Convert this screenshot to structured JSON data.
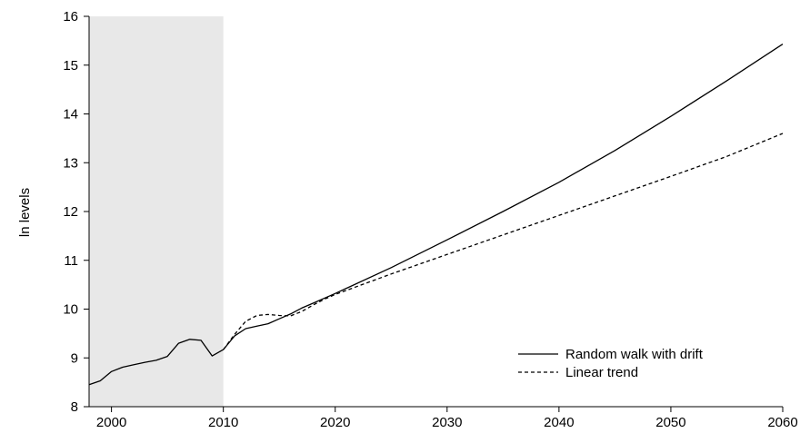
{
  "chart_data": {
    "type": "line",
    "title": "",
    "xlabel": "",
    "ylabel": "ln levels",
    "xlim": [
      1998,
      2060
    ],
    "ylim": [
      8,
      16
    ],
    "x_ticks": [
      2000,
      2010,
      2020,
      2030,
      2040,
      2050,
      2060
    ],
    "y_ticks": [
      8,
      9,
      10,
      11,
      12,
      13,
      14,
      15,
      16
    ],
    "x_tick_labels": [
      "2000",
      "2010",
      "2020",
      "2030",
      "2040",
      "2050",
      "2060"
    ],
    "y_tick_labels": [
      "8",
      "9",
      "10",
      "11",
      "12",
      "13",
      "14",
      "15",
      "16"
    ],
    "shaded_region": {
      "x": [
        1998,
        2010
      ],
      "color": "#e8e8e8"
    },
    "grid": false,
    "legend_position": "bottom-right",
    "series": [
      {
        "name": "Random walk with drift",
        "style": "solid",
        "color": "#000000",
        "x": [
          1998,
          1999,
          2000,
          2001,
          2002,
          2003,
          2004,
          2005,
          2006,
          2007,
          2008,
          2009,
          2010,
          2011,
          2012,
          2013,
          2014,
          2015,
          2016,
          2017,
          2018,
          2019,
          2020,
          2025,
          2030,
          2035,
          2040,
          2045,
          2050,
          2055,
          2060
        ],
        "values": [
          8.45,
          8.53,
          8.72,
          8.81,
          8.86,
          8.91,
          8.95,
          9.03,
          9.3,
          9.38,
          9.36,
          9.04,
          9.17,
          9.45,
          9.6,
          9.65,
          9.7,
          9.8,
          9.9,
          10.02,
          10.12,
          10.22,
          10.32,
          10.85,
          11.42,
          12.0,
          12.6,
          13.25,
          13.95,
          14.68,
          15.43
        ]
      },
      {
        "name": "Linear trend",
        "style": "dashed",
        "color": "#000000",
        "x": [
          2010,
          2011,
          2012,
          2013,
          2014,
          2015,
          2016,
          2017,
          2018,
          2019,
          2020,
          2025,
          2030,
          2035,
          2040,
          2045,
          2050,
          2055,
          2060
        ],
        "values": [
          9.17,
          9.48,
          9.75,
          9.87,
          9.89,
          9.87,
          9.86,
          9.95,
          10.08,
          10.2,
          10.3,
          10.72,
          11.12,
          11.52,
          11.92,
          12.32,
          12.72,
          13.13,
          13.6
        ]
      }
    ]
  }
}
